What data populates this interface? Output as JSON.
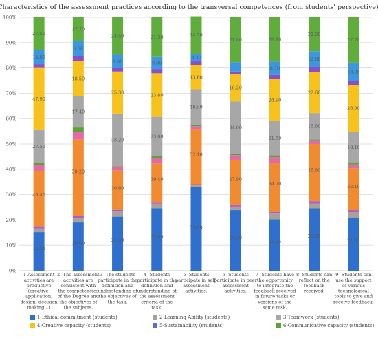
{
  "chart_data": {
    "type": "bar",
    "stacked": true,
    "percent_stacked": true,
    "title": "Characteristics of the assessment practices according to the transversal competences (from students' perspective).",
    "y_ticks": [
      "0%",
      "10%",
      "20%",
      "30%",
      "40%",
      "50%",
      "60%",
      "70%",
      "80%",
      "90%",
      "100%"
    ],
    "ylim": [
      0,
      100
    ],
    "grid": true,
    "legend_position": "bottom",
    "categories": [
      "1-Assessment activities are productive (creative, application, design, decision making…)",
      "2- The assessment activities are consistent with the competencies of the Degree and the objectives of the subjects.",
      "3- The students participate in the definition and understanding of the objectives of the task.",
      "4- Students participate in the definition and understanding of the assessment criteria of the task.",
      "5- Students participate in self-assessment activities.",
      "6- Students participate in peer assessment activities.",
      "7- Students have the opportunity to integrate the feedback received in future tasks or versions of the same task.",
      "8- Students can reflect on the feedback received.",
      "9- Students can use the support of various technological tools to give and receive feedback."
    ],
    "category_lines": [
      [
        "1-Assessment",
        "activities are",
        "productive",
        "(creative,",
        "application,",
        "design, decision",
        "making…)"
      ],
      [
        "2- The assessment",
        "activities are",
        "consistent with",
        "the competencies",
        "of the Degree and",
        "the objectives of",
        "the subjects."
      ],
      [
        "3- The students",
        "participate in the",
        "definition and",
        "understanding of",
        "the objectives of",
        "the task."
      ],
      [
        "4- Students",
        "participate in the",
        "definition and",
        "understanding of",
        "the assessment",
        "criteria of the",
        "task."
      ],
      [
        "5- Students",
        "participate in self-",
        "assessment",
        "activities."
      ],
      [
        "6- Students",
        "participate in peer",
        "assessment",
        "activities."
      ],
      [
        "7- Students have",
        "the opportunity",
        "to integrate the",
        "feedback received",
        "in future tasks or",
        "versions of the",
        "same task."
      ],
      [
        "8- Students can",
        "reflect on the",
        "feedback",
        "received."
      ],
      [
        "9- Students can",
        "use the support",
        "of various",
        "technological",
        "tools to give and",
        "receive feedback."
      ]
    ],
    "series": [
      {
        "name": "1-Ethical commitment (students)",
        "color": "#2f6fcd",
        "values": [
          15.2,
          19.0,
          21.3,
          24.6,
          33.0,
          23.9,
          20.3,
          24.6,
          20.7
        ]
      },
      {
        "name": "2-Learning Ability (students)",
        "color": "#a6a19a",
        "values": [
          1.5,
          1.7,
          2.3,
          1.8,
          0.8,
          1.4,
          2.2,
          1.9,
          2.4
        ]
      },
      {
        "name": "3-Teamwork (students)",
        "color": "#b25bc8",
        "values": [
          0.8,
          0.9,
          0.4,
          0.4,
          0.3,
          0.8,
          0.6,
          0.9,
          0.8
        ]
      },
      {
        "name": "4-Creative capacity (students)",
        "color": "#f28a30",
        "values": [
          21.9,
          30.2,
          15.5,
          15.5,
          21.5,
          17.6,
          19.5,
          22.6,
          16.5
        ]
      },
      {
        "name": "5-Sustainability (students)",
        "color": "#e36aa7",
        "values": [
          2.4,
          3.0,
          1.3,
          2.1,
          1.4,
          1.9,
          2.2,
          1.2,
          1.5
        ]
      },
      {
        "name": "6-Communicative capacity (students)",
        "color": "#5aa436",
        "values": [
          0.7,
          1.7,
          0.4,
          0.9,
          0.6,
          0.6,
          0.7,
          0.6,
          0.7
        ]
      },
      {
        "name": "1-Ethical commitment (students)",
        "color": "#a7a7a7",
        "values": [
          13.0,
          12.4,
          20.8,
          15.4,
          14.0,
          20.6,
          13.5,
          10.4,
          12.2
        ]
      },
      {
        "name": "2-Learning Ability (students)",
        "color": "#f6c21b",
        "values": [
          24.5,
          13.8,
          16.6,
          17.2,
          9.4,
          10.8,
          16.6,
          16.3,
          18.5
        ]
      },
      {
        "name": "3-Teamwork (students)",
        "color": "#8a4fc6",
        "values": [
          1.5,
          2.0,
          1.3,
          1.7,
          1.6,
          1.0,
          1.6,
          1.9,
          1.6
        ]
      },
      {
        "name": "4-Creative capacity (students)",
        "color": "#3b97df",
        "values": [
          5.7,
          6.0,
          5.3,
          4.7,
          3.0,
          3.7,
          5.3,
          6.2,
          7.2
        ]
      },
      {
        "name": "5-Sustainability (students)",
        "color": "#5fae3c",
        "values": [
          12.8,
          9.3,
          14.8,
          15.7,
          14.8,
          17.7,
          17.5,
          13.4,
          17.9
        ]
      }
    ],
    "data_labels": [
      [
        "15.20",
        "49.40",
        "27.50",
        "47.90",
        "14.00",
        "27.50"
      ],
      [
        "19.00",
        "50.20",
        "17.40",
        "18.50",
        "8.30",
        "17.70"
      ],
      [
        "21.30",
        "30.60",
        "33.20",
        "25.30",
        "9.80",
        "24.50"
      ],
      [
        "25.60",
        "29.40",
        "23.00",
        "23.80",
        "9.80",
        "21.50"
      ],
      [
        "33.00",
        "32.10",
        "18.50",
        "13.60",
        "8.30",
        "14.70"
      ],
      [
        "24.30",
        "27.90",
        "34.00",
        "16.20",
        "",
        "21.80"
      ],
      [
        "21.25",
        "34.70",
        "21.50",
        "24.90",
        "8.70",
        "29.10"
      ],
      [
        "25.25",
        "35.80",
        "15.80",
        "22.60",
        "12.80",
        "21.90"
      ],
      [
        "21.25",
        "32.10",
        "18.10",
        "26.00",
        "13.20",
        "27.20"
      ]
    ],
    "legend": [
      {
        "label": "1-Ethical commitment (students)",
        "color": "#2f6fcd"
      },
      {
        "label": "2-Learning Ability (students)",
        "color": "#a6a19a"
      },
      {
        "label": "3-Teamwork (students)",
        "color": "#a7a7a7"
      },
      {
        "label": "4-Creative capacity (students)",
        "color": "#f6c21b"
      },
      {
        "label": "5-Sustainability (students)",
        "color": "#5a6fd6"
      },
      {
        "label": "6-Communicative capacity (students)",
        "color": "#5aa436"
      }
    ]
  }
}
